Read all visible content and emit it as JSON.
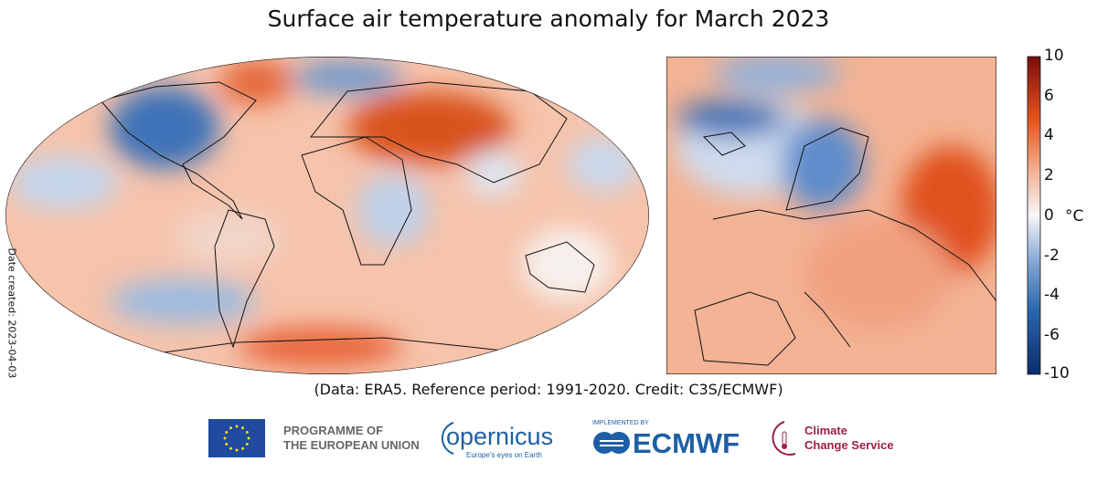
{
  "title": "Surface air temperature anomaly for March 2023",
  "date_created": "Date created: 2023-04-03",
  "credit": "(Data: ERA5.  Reference period: 1991-2020.  Credit: C3S/ECMWF)",
  "colorbar": {
    "unit": "°C",
    "ticks": [
      "10",
      "6",
      "4",
      "2",
      "0",
      "-2",
      "-4",
      "-6",
      "-10"
    ],
    "range": [
      -10,
      10
    ],
    "colors": {
      "max": "#7a0c0c",
      "warm": "#e8541e",
      "neutral": "#f7f7f7",
      "cool": "#4f84c4",
      "min": "#0b2d6b"
    }
  },
  "maps": [
    {
      "region": "global",
      "projection": "Robinson"
    },
    {
      "region": "europe"
    }
  ],
  "logos": {
    "eu_line1": "PROGRAMME OF",
    "eu_line2": "THE EUROPEAN UNION",
    "copernicus": "opernicus",
    "copernicus_tagline": "Europe's eyes on Earth",
    "implemented_by": "IMPLEMENTED BY",
    "ecmwf": "ECMWF",
    "c3s_line1": "Climate",
    "c3s_line2": "Change Service"
  }
}
